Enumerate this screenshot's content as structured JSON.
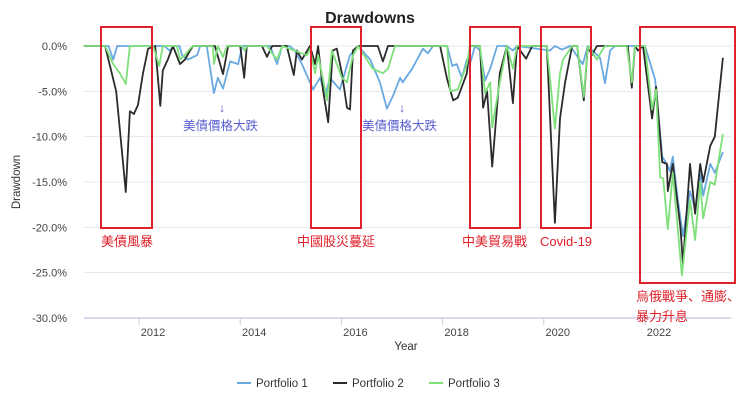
{
  "chart_data": {
    "type": "line",
    "title": "Drawdowns",
    "xlabel": "Year",
    "ylabel": "Drawdown",
    "xlim": [
      2010.91,
      2023.7
    ],
    "ylim": [
      -30,
      0
    ],
    "x_ticks": [
      "2012",
      "2014",
      "2016",
      "2018",
      "2020",
      "2022"
    ],
    "y_ticks": [
      "0.0%",
      "-5.0%",
      "-10.0%",
      "-15.0%",
      "-20.0%",
      "-25.0%",
      "-30.0%"
    ],
    "grid": true,
    "legend_position": "bottom",
    "series": [
      {
        "name": "Portfolio 1",
        "color": "#6aa9e0",
        "points": [
          [
            2010.91,
            0
          ],
          [
            2011.4,
            0
          ],
          [
            2011.49,
            -1.5
          ],
          [
            2011.57,
            0
          ],
          [
            2012.5,
            0
          ],
          [
            2012.6,
            -0.5
          ],
          [
            2012.7,
            0
          ],
          [
            2012.8,
            0
          ],
          [
            2012.85,
            -1
          ],
          [
            2012.97,
            -1.5
          ],
          [
            2013.15,
            -1
          ],
          [
            2013.21,
            0
          ],
          [
            2013.34,
            0
          ],
          [
            2013.48,
            -5.2
          ],
          [
            2013.56,
            -3.5
          ],
          [
            2013.66,
            -4.7
          ],
          [
            2013.8,
            -1.7
          ],
          [
            2013.96,
            -2
          ],
          [
            2014.04,
            0
          ],
          [
            2014.59,
            0
          ],
          [
            2014.73,
            -2
          ],
          [
            2014.83,
            0
          ],
          [
            2014.98,
            0
          ],
          [
            2015.08,
            -0.5
          ],
          [
            2015.22,
            -2
          ],
          [
            2015.44,
            -4.8
          ],
          [
            2015.58,
            -3.5
          ],
          [
            2015.68,
            -5.5
          ],
          [
            2015.77,
            -3.5
          ],
          [
            2015.97,
            -4.8
          ],
          [
            2016.17,
            -1
          ],
          [
            2016.33,
            0
          ],
          [
            2016.57,
            -1.5
          ],
          [
            2016.76,
            -4
          ],
          [
            2016.9,
            -6.9
          ],
          [
            2017.02,
            -5.5
          ],
          [
            2017.16,
            -3.5
          ],
          [
            2017.21,
            -4
          ],
          [
            2017.4,
            -2.5
          ],
          [
            2017.61,
            -0.3
          ],
          [
            2017.71,
            -0.8
          ],
          [
            2017.81,
            0
          ],
          [
            2018.09,
            0
          ],
          [
            2018.19,
            -2.2
          ],
          [
            2018.28,
            -2
          ],
          [
            2018.38,
            -3.5
          ],
          [
            2018.48,
            -1.5
          ],
          [
            2018.54,
            -2
          ],
          [
            2018.64,
            0
          ],
          [
            2018.74,
            -0.5
          ],
          [
            2018.84,
            -3.8
          ],
          [
            2018.94,
            -2.5
          ],
          [
            2019.08,
            0
          ],
          [
            2019.27,
            0
          ],
          [
            2019.39,
            -0.5
          ],
          [
            2019.47,
            0
          ],
          [
            2020.12,
            -0.5
          ],
          [
            2020.22,
            0
          ],
          [
            2020.36,
            -0.4
          ],
          [
            2020.52,
            0
          ],
          [
            2020.77,
            -2
          ],
          [
            2020.87,
            0
          ],
          [
            2021.11,
            -1.3
          ],
          [
            2021.21,
            -4.1
          ],
          [
            2021.31,
            -0.5
          ],
          [
            2021.41,
            0
          ],
          [
            2022.0,
            0
          ],
          [
            2022.2,
            -3.7
          ],
          [
            2022.34,
            -12.2
          ],
          [
            2022.43,
            -13
          ],
          [
            2022.49,
            -13.8
          ],
          [
            2022.55,
            -12.2
          ],
          [
            2022.65,
            -17
          ],
          [
            2022.75,
            -21
          ],
          [
            2022.89,
            -16
          ],
          [
            2022.99,
            -18
          ],
          [
            2023.09,
            -14
          ],
          [
            2023.15,
            -16.5
          ],
          [
            2023.29,
            -13
          ],
          [
            2023.38,
            -14
          ],
          [
            2023.54,
            -11.7
          ]
        ]
      },
      {
        "name": "Portfolio 2",
        "color": "#2b2b2b",
        "points": [
          [
            2010.91,
            0
          ],
          [
            2011.33,
            0
          ],
          [
            2011.55,
            -5
          ],
          [
            2011.74,
            -16.1
          ],
          [
            2011.82,
            -7.2
          ],
          [
            2011.9,
            -7.5
          ],
          [
            2011.98,
            -6.5
          ],
          [
            2012.08,
            -3
          ],
          [
            2012.18,
            -0.3
          ],
          [
            2012.32,
            0
          ],
          [
            2012.42,
            -6.6
          ],
          [
            2012.47,
            -2.7
          ],
          [
            2012.57,
            -1.5
          ],
          [
            2012.67,
            0
          ],
          [
            2012.81,
            -2
          ],
          [
            2012.91,
            -1.5
          ],
          [
            2013.01,
            -0.5
          ],
          [
            2013.07,
            0
          ],
          [
            2013.5,
            0
          ],
          [
            2013.66,
            -3.1
          ],
          [
            2013.76,
            0
          ],
          [
            2014.0,
            0
          ],
          [
            2014.08,
            -3.5
          ],
          [
            2014.13,
            0
          ],
          [
            2014.43,
            0
          ],
          [
            2014.53,
            -1.2
          ],
          [
            2014.63,
            0
          ],
          [
            2014.92,
            0
          ],
          [
            2015.06,
            -3.2
          ],
          [
            2015.12,
            -0.5
          ],
          [
            2015.22,
            -1.5
          ],
          [
            2015.38,
            0
          ],
          [
            2015.48,
            -2
          ],
          [
            2015.54,
            0
          ],
          [
            2015.64,
            -5
          ],
          [
            2015.74,
            -8.4
          ],
          [
            2015.83,
            -0.5
          ],
          [
            2015.91,
            -0.3
          ],
          [
            2016.01,
            -3
          ],
          [
            2016.11,
            -6.8
          ],
          [
            2016.17,
            -7
          ],
          [
            2016.23,
            -0.5
          ],
          [
            2016.33,
            0
          ],
          [
            2016.72,
            0
          ],
          [
            2016.82,
            -1.7
          ],
          [
            2016.92,
            0
          ],
          [
            2017.95,
            0
          ],
          [
            2018.09,
            -3.7
          ],
          [
            2018.21,
            -6
          ],
          [
            2018.3,
            -5.7
          ],
          [
            2018.48,
            -3
          ],
          [
            2018.54,
            0
          ],
          [
            2018.74,
            0
          ],
          [
            2018.8,
            -6.8
          ],
          [
            2018.88,
            -5
          ],
          [
            2018.98,
            -13.3
          ],
          [
            2019.13,
            -3
          ],
          [
            2019.27,
            0
          ],
          [
            2019.39,
            -6.3
          ],
          [
            2019.47,
            0
          ],
          [
            2019.65,
            -1.4
          ],
          [
            2019.77,
            0
          ],
          [
            2020.06,
            0
          ],
          [
            2020.22,
            -19.5
          ],
          [
            2020.32,
            -8
          ],
          [
            2020.42,
            -4
          ],
          [
            2020.56,
            0
          ],
          [
            2020.66,
            0
          ],
          [
            2020.79,
            -6
          ],
          [
            2020.87,
            0
          ],
          [
            2020.95,
            -1
          ],
          [
            2021.05,
            0
          ],
          [
            2021.66,
            0
          ],
          [
            2021.74,
            -4.6
          ],
          [
            2021.8,
            0
          ],
          [
            2021.86,
            -0.5
          ],
          [
            2021.96,
            0
          ],
          [
            2022.14,
            -8
          ],
          [
            2022.22,
            -4.5
          ],
          [
            2022.34,
            -12.8
          ],
          [
            2022.43,
            -13
          ],
          [
            2022.45,
            -16
          ],
          [
            2022.55,
            -13
          ],
          [
            2022.7,
            -20
          ],
          [
            2022.75,
            -24
          ],
          [
            2022.89,
            -13
          ],
          [
            2022.99,
            -18.5
          ],
          [
            2023.09,
            -13
          ],
          [
            2023.15,
            -15
          ],
          [
            2023.29,
            -11
          ],
          [
            2023.38,
            -10
          ],
          [
            2023.48,
            -4.5
          ],
          [
            2023.54,
            -1.3
          ]
        ]
      },
      {
        "name": "Portfolio 3",
        "color": "#7ee07a",
        "points": [
          [
            2010.91,
            0
          ],
          [
            2011.33,
            0
          ],
          [
            2011.49,
            -2
          ],
          [
            2011.62,
            -3
          ],
          [
            2011.74,
            -4.2
          ],
          [
            2011.82,
            0
          ],
          [
            2012.28,
            0
          ],
          [
            2012.4,
            -2.2
          ],
          [
            2012.47,
            0
          ],
          [
            2012.75,
            0
          ],
          [
            2012.81,
            -1.5
          ],
          [
            2012.91,
            -1
          ],
          [
            2013.01,
            -0.3
          ],
          [
            2013.07,
            0
          ],
          [
            2013.46,
            0
          ],
          [
            2013.48,
            -2
          ],
          [
            2013.56,
            0
          ],
          [
            2013.66,
            -1.2
          ],
          [
            2013.74,
            0
          ],
          [
            2014.04,
            0
          ],
          [
            2014.09,
            -0.5
          ],
          [
            2014.13,
            0
          ],
          [
            2014.53,
            0
          ],
          [
            2014.63,
            -0.8
          ],
          [
            2014.73,
            -1.5
          ],
          [
            2014.83,
            0
          ],
          [
            2015.22,
            -0.8
          ],
          [
            2015.32,
            -1
          ],
          [
            2015.38,
            -0.3
          ],
          [
            2015.48,
            -3
          ],
          [
            2015.54,
            -1
          ],
          [
            2015.72,
            -6
          ],
          [
            2015.81,
            -0.5
          ],
          [
            2016.01,
            -3.5
          ],
          [
            2016.11,
            -4
          ],
          [
            2016.23,
            -1
          ],
          [
            2016.33,
            0
          ],
          [
            2016.62,
            -2.5
          ],
          [
            2016.82,
            -3
          ],
          [
            2016.92,
            -2.5
          ],
          [
            2017.06,
            0
          ],
          [
            2018.09,
            0
          ],
          [
            2018.15,
            -5
          ],
          [
            2018.3,
            -4.8
          ],
          [
            2018.48,
            -2
          ],
          [
            2018.54,
            0
          ],
          [
            2018.74,
            0
          ],
          [
            2018.84,
            -5.2
          ],
          [
            2018.94,
            -4
          ],
          [
            2018.98,
            -9
          ],
          [
            2019.13,
            -4
          ],
          [
            2019.27,
            0
          ],
          [
            2019.39,
            -2.5
          ],
          [
            2019.47,
            0
          ],
          [
            2020.06,
            0
          ],
          [
            2020.22,
            -9.1
          ],
          [
            2020.32,
            -3
          ],
          [
            2020.38,
            -1.5
          ],
          [
            2020.56,
            0
          ],
          [
            2020.66,
            0
          ],
          [
            2020.79,
            -5.6
          ],
          [
            2020.87,
            0
          ],
          [
            2021.05,
            -1.5
          ],
          [
            2021.15,
            -0.5
          ],
          [
            2021.21,
            0
          ],
          [
            2021.64,
            0
          ],
          [
            2021.74,
            -4
          ],
          [
            2021.8,
            0
          ],
          [
            2022.0,
            0
          ],
          [
            2022.14,
            -7
          ],
          [
            2022.22,
            -4.8
          ],
          [
            2022.3,
            -14.5
          ],
          [
            2022.36,
            -14.6
          ],
          [
            2022.45,
            -20.2
          ],
          [
            2022.55,
            -14
          ],
          [
            2022.73,
            -25.3
          ],
          [
            2022.89,
            -17
          ],
          [
            2022.99,
            -21.4
          ],
          [
            2023.09,
            -15
          ],
          [
            2023.15,
            -19
          ],
          [
            2023.29,
            -15
          ],
          [
            2023.38,
            -15.3
          ],
          [
            2023.54,
            -9.7
          ]
        ]
      }
    ],
    "annotations": {
      "highlight_color": "#e0202a",
      "note_color": "#5a5fd0",
      "boxes": [
        {
          "label": "美債風暴"
        },
        {
          "label": "中國股災蔓延"
        },
        {
          "label": "中美貿易戰"
        },
        {
          "label": "Covid-19"
        },
        {
          "label": "烏俄戰爭、通膨、",
          "label2": "暴力升息"
        }
      ],
      "notes": [
        {
          "arrow": "↓",
          "text": "美債價格大跌"
        },
        {
          "arrow": "↓",
          "text": "美債價格大跌"
        }
      ]
    }
  }
}
